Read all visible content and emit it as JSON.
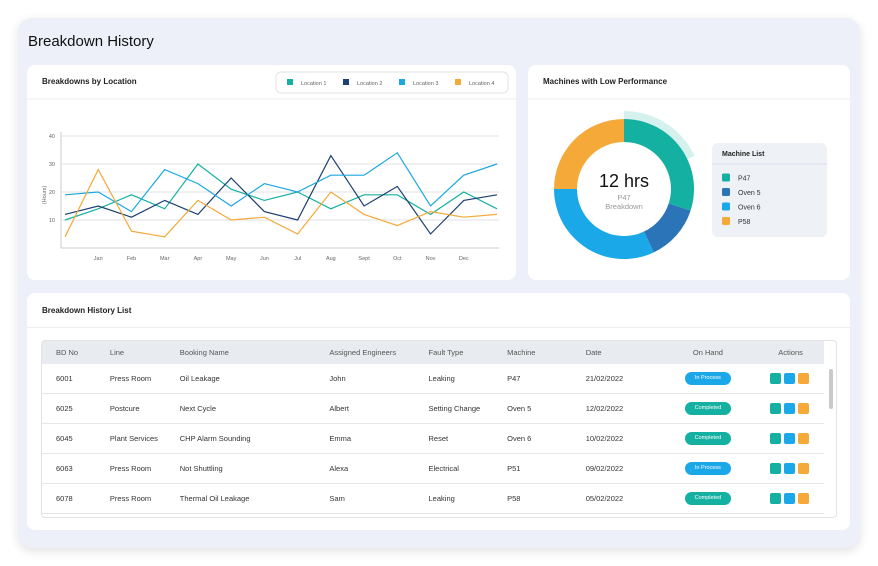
{
  "header": {
    "title": "Breakdown History"
  },
  "chart_data": [
    {
      "type": "line",
      "title": "Breakdowns by Location",
      "y_label": "(Hours)",
      "categories": [
        null,
        "Jan",
        "Feb",
        "Mar",
        "Apr",
        "May",
        "Jun",
        "Jul",
        "Aug",
        "Sept",
        "Oct",
        "Nov",
        "Dec",
        null
      ],
      "series": [
        {
          "name": "Location 1",
          "color": "#14b0a2",
          "values": [
            10,
            14,
            19,
            14,
            30,
            21,
            17,
            20,
            14,
            19,
            19,
            12,
            20,
            14
          ]
        },
        {
          "name": "Location 2",
          "color": "#1d3f73",
          "values": [
            12,
            15,
            11,
            17,
            12,
            25,
            13,
            10,
            33,
            15,
            22,
            5,
            17,
            19
          ]
        },
        {
          "name": "Location 3",
          "color": "#1ba8e0",
          "values": [
            19,
            20,
            13,
            28,
            23,
            15,
            23,
            20,
            26,
            26,
            34,
            15,
            26,
            30
          ]
        },
        {
          "name": "Location 4",
          "color": "#f5a939",
          "values": [
            4,
            28,
            6,
            4,
            17,
            10,
            11,
            5,
            20,
            12,
            8,
            13,
            11,
            12
          ]
        }
      ],
      "ylim": [
        0,
        45
      ],
      "yticks": [
        10,
        20,
        30,
        40
      ],
      "grid": true,
      "legend": "top-right"
    },
    {
      "type": "pie",
      "title": "Machines with Low Performance",
      "donut": true,
      "center_label": "12 hrs",
      "center_sublabel": "P47 Breakdown",
      "legend_title": "Machine List",
      "categories": [
        "P47",
        "Oven 5",
        "Oven 6",
        "P58"
      ],
      "values": [
        30,
        13,
        32,
        25
      ],
      "colors": [
        "#14b0a2",
        "#2b74b8",
        "#1ba8e8",
        "#f5a939"
      ]
    }
  ],
  "table": {
    "title": "Breakdown History List",
    "columns": [
      "BD No",
      "Line",
      "Booking Name",
      "Assigned Engineers",
      "Fault Type",
      "Machine",
      "Date",
      "On Hand",
      "Actions"
    ],
    "rows": [
      [
        "6001",
        "Press Room",
        "Oil Leakage",
        "John",
        "Leaking",
        "P47",
        "21/02/2022",
        "In Process"
      ],
      [
        "6025",
        "Postcure",
        "Next Cycle",
        "Albert",
        "Setting Change",
        "Oven 5",
        "12/02/2022",
        "Completed"
      ],
      [
        "6045",
        "Plant Services",
        "CHP Alarm Sounding",
        "Emma",
        "Reset",
        "Oven 6",
        "10/02/2022",
        "Completed"
      ],
      [
        "6063",
        "Press Room",
        "Not Shuttling",
        "Alexa",
        "Electrical",
        "P51",
        "09/02/2022",
        "In Process"
      ],
      [
        "6078",
        "Press Room",
        "Thermal Oil Leakage",
        "Sam",
        "Leaking",
        "P58",
        "05/02/2022",
        "Completed"
      ]
    ]
  }
}
